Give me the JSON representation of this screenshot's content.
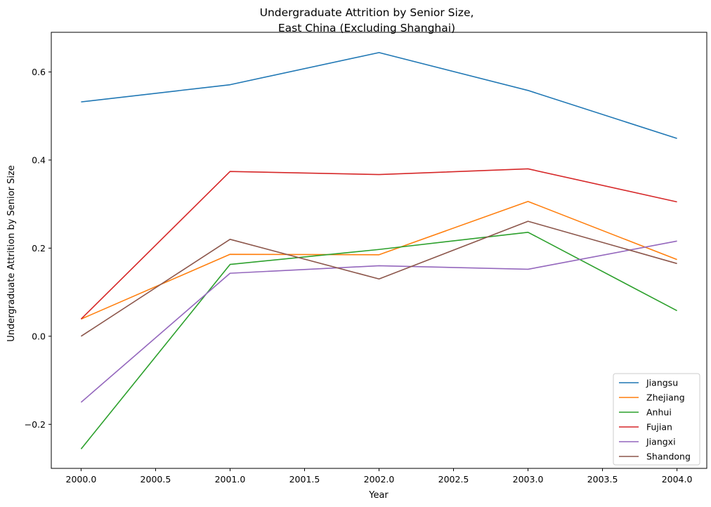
{
  "chart_data": {
    "type": "line",
    "title": "Undergraduate Attrition by Senior Size,",
    "subtitle": "East China (Excluding Shanghai)",
    "xlabel": "Year",
    "ylabel": "Undergraduate Attrition by Senior Size",
    "x": [
      2000,
      2001,
      2002,
      2003,
      2004
    ],
    "xlim": [
      1999.8,
      2004.2
    ],
    "ylim": [
      -0.3,
      0.69
    ],
    "xticks": [
      2000.0,
      2000.5,
      2001.0,
      2001.5,
      2002.0,
      2002.5,
      2003.0,
      2003.5,
      2004.0
    ],
    "xtick_labels": [
      "2000.0",
      "2000.5",
      "2001.0",
      "2001.5",
      "2002.0",
      "2002.5",
      "2003.0",
      "2003.5",
      "2004.0"
    ],
    "yticks": [
      -0.2,
      0.0,
      0.2,
      0.4,
      0.6
    ],
    "ytick_labels": [
      "−0.2",
      "0.0",
      "0.2",
      "0.4",
      "0.6"
    ],
    "grid": false,
    "legend_position": "bottom-right",
    "series": [
      {
        "name": "Jiangsu",
        "color": "#1f77b4",
        "values": [
          0.532,
          0.571,
          0.644,
          0.558,
          0.449
        ]
      },
      {
        "name": "Zhejiang",
        "color": "#ff7f0e",
        "values": [
          0.039,
          0.186,
          0.185,
          0.306,
          0.174
        ]
      },
      {
        "name": "Anhui",
        "color": "#2ca02c",
        "values": [
          -0.256,
          0.163,
          0.197,
          0.236,
          0.058
        ]
      },
      {
        "name": "Fujian",
        "color": "#d62728",
        "values": [
          0.039,
          0.374,
          0.367,
          0.38,
          0.305
        ]
      },
      {
        "name": "Jiangxi",
        "color": "#9467bd",
        "values": [
          -0.15,
          0.143,
          0.16,
          0.152,
          0.216
        ]
      },
      {
        "name": "Shandong",
        "color": "#8c564b",
        "values": [
          0.0,
          0.22,
          0.13,
          0.261,
          0.165
        ]
      }
    ]
  }
}
